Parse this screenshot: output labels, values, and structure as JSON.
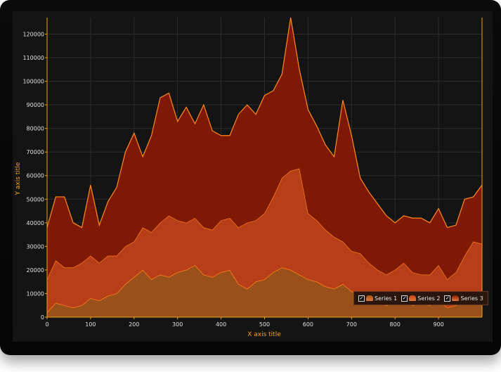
{
  "chart_data": {
    "type": "area",
    "xlabel": "X axis title",
    "ylabel": "Y axis title",
    "xlim": [
      0,
      1000
    ],
    "ylim": [
      0,
      127000
    ],
    "x_ticks": [
      0,
      100,
      200,
      300,
      400,
      500,
      600,
      700,
      800,
      900
    ],
    "y_ticks": [
      0,
      10000,
      20000,
      30000,
      40000,
      50000,
      60000,
      70000,
      80000,
      90000,
      100000,
      110000,
      120000
    ],
    "grid": true,
    "stacked": true,
    "legend_position": "bottom-right",
    "x": [
      0,
      20,
      40,
      60,
      80,
      100,
      120,
      140,
      160,
      180,
      200,
      220,
      240,
      260,
      280,
      300,
      320,
      340,
      360,
      380,
      400,
      420,
      440,
      460,
      480,
      500,
      520,
      540,
      560,
      580,
      600,
      620,
      640,
      660,
      680,
      700,
      720,
      740,
      760,
      780,
      800,
      820,
      840,
      860,
      880,
      900,
      920,
      940,
      960,
      980,
      1000
    ],
    "series": [
      {
        "name": "Series 1",
        "color": "#a8561c",
        "values": [
          2000,
          6000,
          5000,
          4000,
          5000,
          8000,
          7000,
          9000,
          10000,
          14000,
          17000,
          20000,
          16000,
          18000,
          17000,
          19000,
          20000,
          22000,
          18000,
          17000,
          19000,
          20000,
          14000,
          12000,
          15000,
          16000,
          19000,
          21000,
          20000,
          18000,
          16000,
          15000,
          13000,
          12000,
          14000,
          11000,
          9000,
          7000,
          6000,
          5000,
          6000,
          7000,
          5000,
          6000,
          5000,
          7000,
          4000,
          5000,
          6000,
          8000,
          11000
        ]
      },
      {
        "name": "Series 2",
        "color": "#c8421a",
        "values": [
          14000,
          18000,
          16000,
          17000,
          18000,
          18000,
          16000,
          17000,
          16000,
          16000,
          15000,
          18000,
          20000,
          22000,
          26000,
          22000,
          20000,
          20000,
          20000,
          20000,
          22000,
          22000,
          24000,
          28000,
          26000,
          28000,
          32000,
          38000,
          42000,
          45000,
          28000,
          26000,
          24000,
          22000,
          18000,
          17000,
          18000,
          16000,
          14000,
          13000,
          14000,
          16000,
          14000,
          12000,
          13000,
          15000,
          12000,
          14000,
          20000,
          24000,
          20000
        ]
      },
      {
        "name": "Series 3",
        "color": "#8a1a04",
        "values": [
          22000,
          27000,
          30000,
          19000,
          15000,
          30000,
          16000,
          23000,
          29000,
          40000,
          46000,
          30000,
          41000,
          53000,
          52000,
          42000,
          49000,
          40000,
          52000,
          42000,
          36000,
          35000,
          48000,
          50000,
          45000,
          50000,
          45000,
          44000,
          65000,
          42000,
          44000,
          40000,
          36000,
          34000,
          60000,
          49000,
          32000,
          30000,
          28000,
          25000,
          20000,
          20000,
          23000,
          24000,
          22000,
          24000,
          22000,
          20000,
          24000,
          19000,
          25000
        ]
      }
    ]
  },
  "legend": {
    "items": [
      {
        "label": "Series 1",
        "color": "#a8561c"
      },
      {
        "label": "Series 2",
        "color": "#c8421a"
      },
      {
        "label": "Series 3",
        "color": "#8a1a04"
      }
    ]
  }
}
